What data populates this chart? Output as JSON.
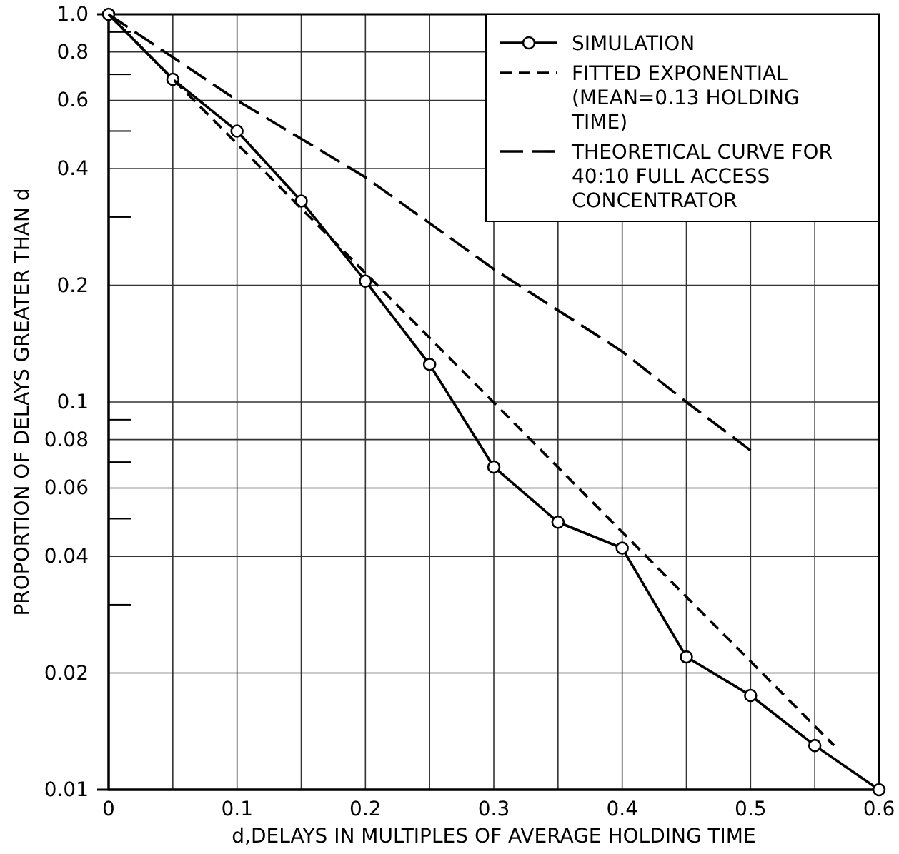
{
  "chart_data": {
    "type": "line",
    "xlabel": "d,DELAYS IN MULTIPLES OF AVERAGE HOLDING TIME",
    "ylabel": "PROPORTION OF DELAYS GREATER THAN d",
    "log": "y",
    "grid": true,
    "legend": "top right",
    "xlim": [
      0,
      0.6
    ],
    "xticks": [
      0,
      {
        "value": 0.05,
        "label": null
      },
      0.1,
      {
        "value": 0.15,
        "label": null
      },
      0.2,
      {
        "value": 0.25,
        "label": null
      },
      0.3,
      {
        "value": 0.35,
        "label": null
      },
      0.4,
      {
        "value": 0.45,
        "label": null
      },
      0.5,
      {
        "value": 0.55,
        "label": null
      },
      0.6
    ],
    "ylim": [
      0.01,
      1.0
    ],
    "yticks": [
      0.01,
      0.02,
      {
        "value": 0.03,
        "label": null
      },
      0.04,
      {
        "value": 0.05,
        "label": null
      },
      0.06,
      {
        "value": 0.07,
        "label": null
      },
      0.08,
      {
        "value": 0.09,
        "label": null
      },
      0.1,
      0.2,
      {
        "value": 0.3,
        "label": null
      },
      0.4,
      {
        "value": 0.5,
        "label": null
      },
      0.6,
      {
        "value": 0.7,
        "label": null
      },
      0.8,
      {
        "value": 0.9,
        "label": null
      },
      {
        "value": 1.0,
        "label": "1.0"
      }
    ],
    "series": [
      {
        "name": "SIMULATION",
        "color": "#000000",
        "marker": "circle",
        "line_style": "solid",
        "x": [
          0,
          0.05,
          0.1,
          0.15,
          0.2,
          0.25,
          0.3,
          0.35,
          0.4,
          0.45,
          0.5,
          0.55,
          0.6
        ],
        "values": [
          1.0,
          0.68,
          0.5,
          0.33,
          0.205,
          0.125,
          0.068,
          0.049,
          0.042,
          0.022,
          0.0175,
          0.013,
          0.01
        ]
      },
      {
        "name": "FITTED EXPONENTIAL (MEAN=0.13 HOLDING TIME)",
        "color": "#000000",
        "marker": "none",
        "line_style": "dashed",
        "x": [
          0,
          0.565
        ],
        "values": [
          1.0,
          0.013
        ]
      },
      {
        "name": "THEORETICAL CURVE FOR 40:10 FULL ACCESS CONCENTRATOR",
        "color": "#000000",
        "marker": "none",
        "line_style": "dashed",
        "x": [
          0,
          0.1,
          0.2,
          0.3,
          0.4,
          0.45,
          0.5
        ],
        "values": [
          1.0,
          0.6,
          0.38,
          0.22,
          0.135,
          0.1,
          0.075
        ]
      }
    ]
  }
}
